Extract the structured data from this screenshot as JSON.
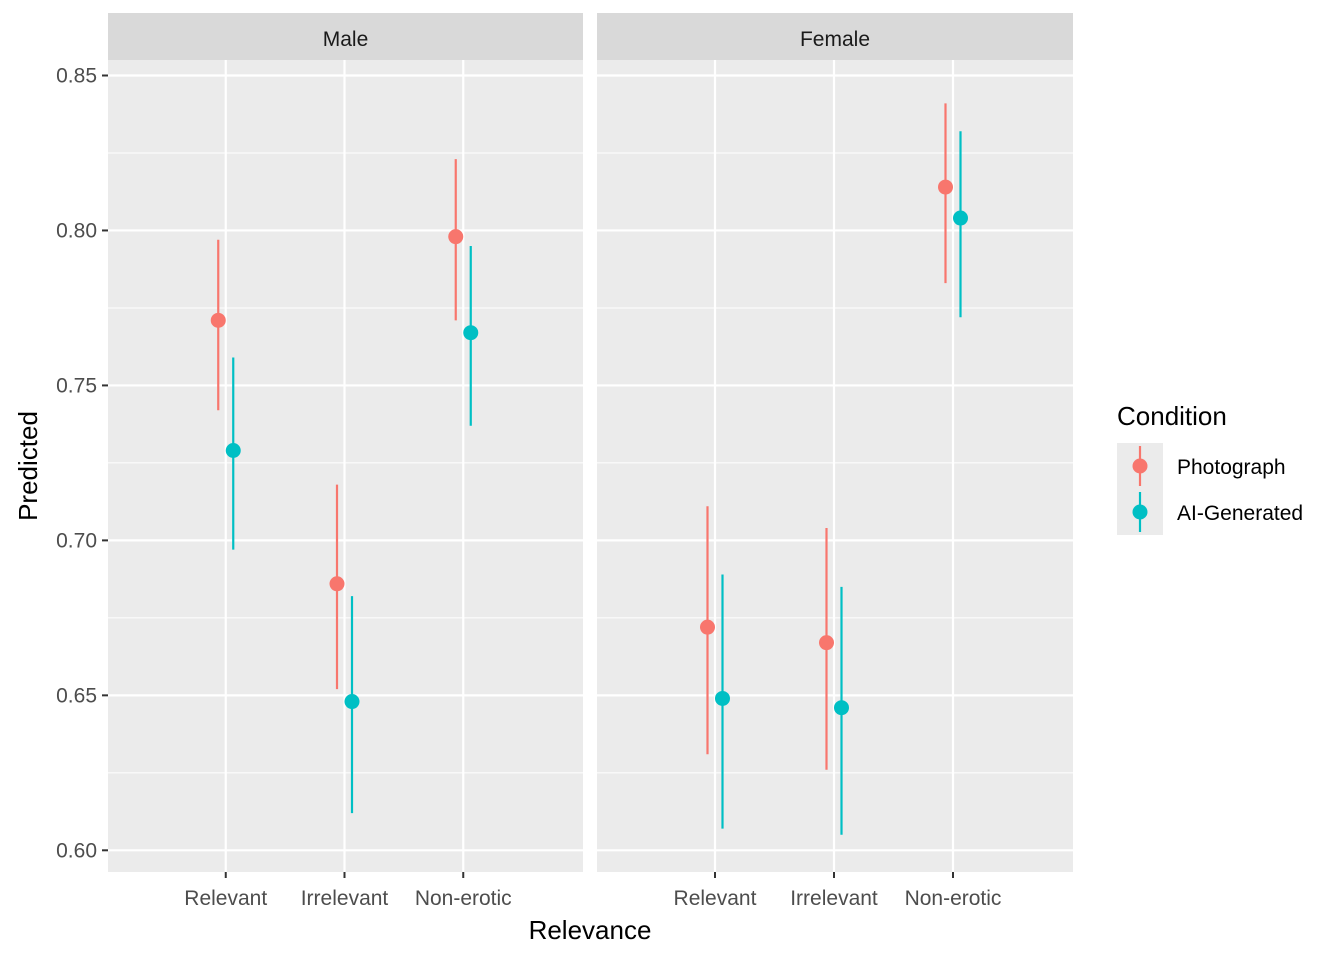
{
  "chart_data": {
    "type": "scatter",
    "subtype": "point-range (faceted)",
    "xlabel": "Relevance",
    "ylabel": "Predicted",
    "ylim": [
      0.593,
      0.855
    ],
    "yticks": [
      "0.60",
      "0.65",
      "0.70",
      "0.75",
      "0.80",
      "0.85"
    ],
    "ytick_values": [
      0.6,
      0.65,
      0.7,
      0.75,
      0.8,
      0.85
    ],
    "categories": [
      "Relevant",
      "Irrelevant",
      "Non-erotic"
    ],
    "grid": true,
    "legend": {
      "title": "Condition",
      "placement": "right",
      "entries": [
        {
          "name": "Photograph",
          "color": "#F8766D"
        },
        {
          "name": "AI-Generated",
          "color": "#00BFC4"
        }
      ]
    },
    "facets": [
      {
        "label": "Male",
        "series": [
          {
            "name": "Photograph",
            "values": [
              0.771,
              0.686,
              0.798
            ],
            "lower": [
              0.742,
              0.652,
              0.771
            ],
            "upper": [
              0.797,
              0.718,
              0.823
            ]
          },
          {
            "name": "AI-Generated",
            "values": [
              0.729,
              0.648,
              0.767
            ],
            "lower": [
              0.697,
              0.612,
              0.737
            ],
            "upper": [
              0.759,
              0.682,
              0.795
            ]
          }
        ]
      },
      {
        "label": "Female",
        "series": [
          {
            "name": "Photograph",
            "values": [
              0.672,
              0.667,
              0.814
            ],
            "lower": [
              0.631,
              0.626,
              0.783
            ],
            "upper": [
              0.711,
              0.704,
              0.841
            ]
          },
          {
            "name": "AI-Generated",
            "values": [
              0.649,
              0.646,
              0.804
            ],
            "lower": [
              0.607,
              0.605,
              0.772
            ],
            "upper": [
              0.689,
              0.685,
              0.832
            ]
          }
        ]
      }
    ]
  },
  "colors": {
    "panel_background": "#EBEBEB",
    "strip_background": "#D9D9D9",
    "grid": "#FFFFFF"
  }
}
